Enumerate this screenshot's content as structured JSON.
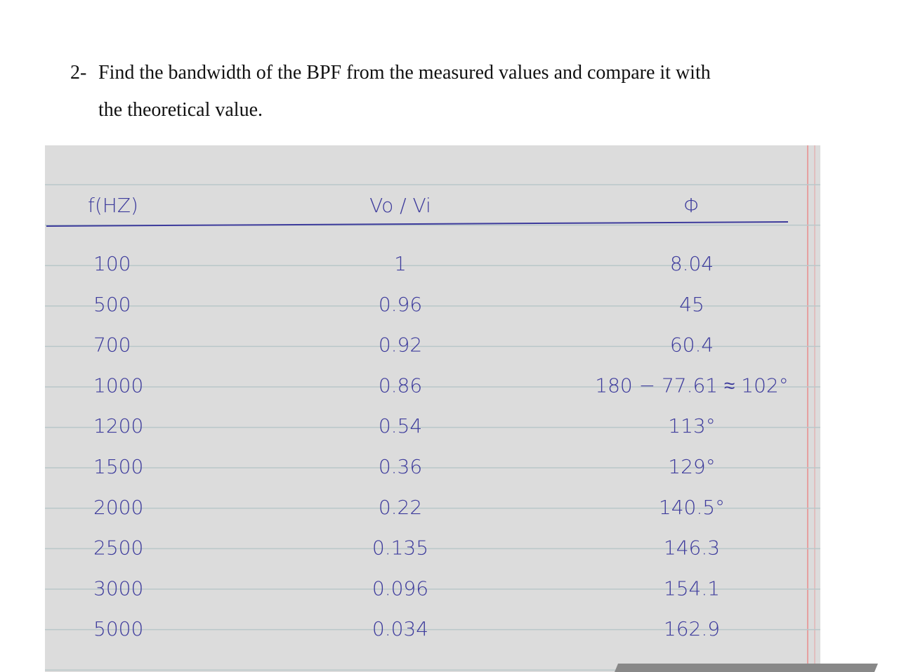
{
  "question": {
    "number": "2-",
    "line1": "Find the bandwidth of the BPF from the measured values and compare it with",
    "line2": "the theoretical value."
  },
  "table": {
    "header": [
      "f(HZ)",
      "Vo / Vi",
      "Φ"
    ],
    "rows": [
      [
        "100",
        "1",
        "8.04"
      ],
      [
        "500",
        "0.96",
        "45"
      ],
      [
        "700",
        "0.92",
        "60.4"
      ],
      [
        "1000",
        "0.86",
        "180 − 77.61 ≈ 102°"
      ],
      [
        "1200",
        "0.54",
        "113°"
      ],
      [
        "1500",
        "0.36",
        "129°"
      ],
      [
        "2000",
        "0.22",
        "140.5°"
      ],
      [
        "2500",
        "0.135",
        "146.3"
      ],
      [
        "3000",
        "0.096",
        "154.1"
      ],
      [
        "5000",
        "0.034",
        "162.9"
      ]
    ]
  }
}
